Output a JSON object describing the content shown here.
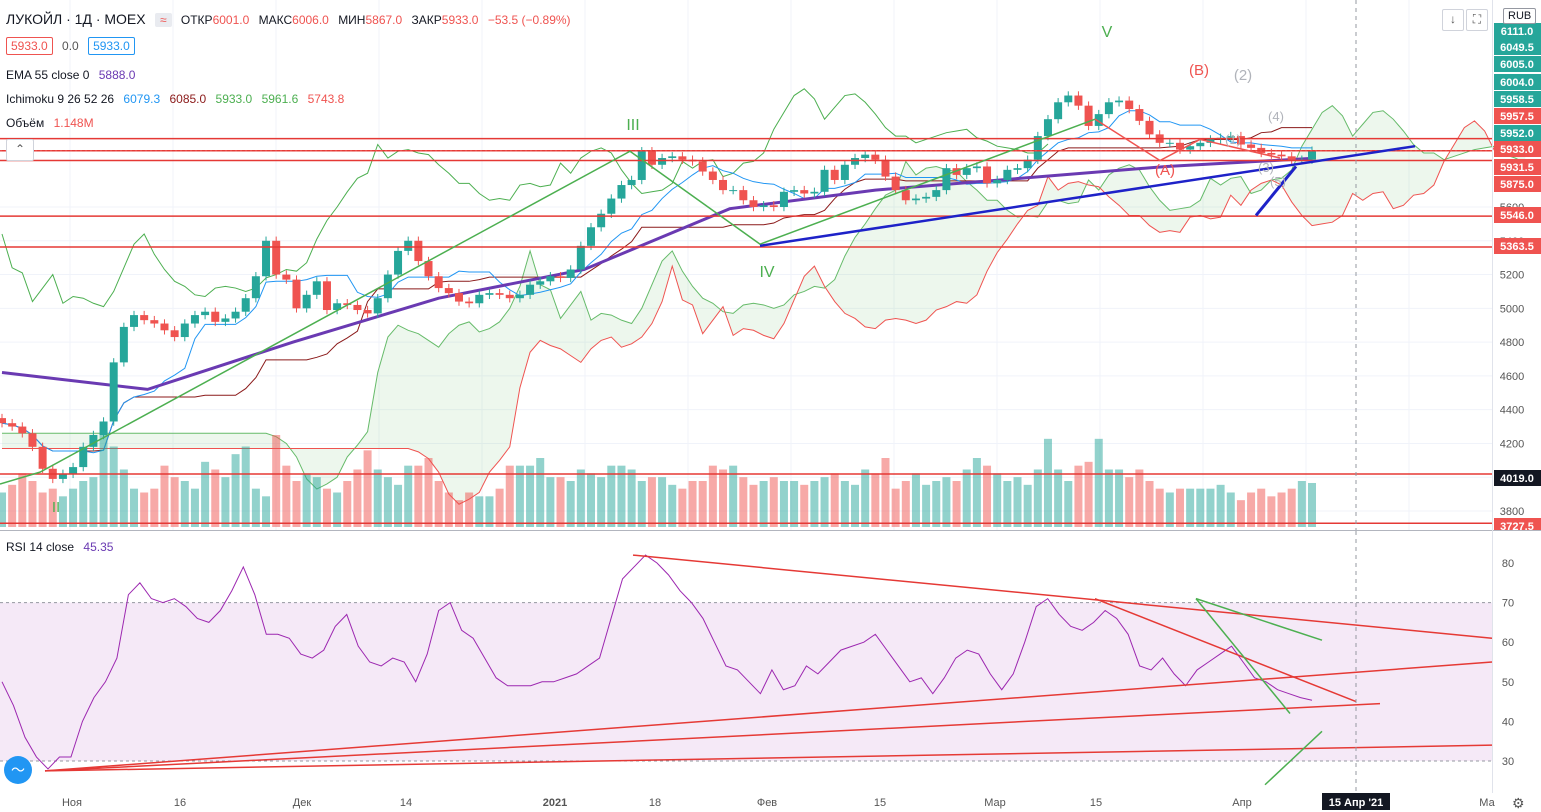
{
  "header": {
    "symbol": "ЛУКОЙЛ · 1Д · MOEX",
    "open_label": "ОТКР",
    "open": "6001.0",
    "high_label": "МАКС",
    "high": "6006.0",
    "low_label": "МИН",
    "low": "5867.0",
    "close_label": "ЗАКР",
    "close": "5933.0",
    "change": "−53.5 (−0.89%)",
    "bid": "5933.0",
    "spread": "0.0",
    "ask": "5933.0"
  },
  "indicators": {
    "ema_label": "EMA 55 close 0",
    "ema_value": "5888.0",
    "ichimoku_label": "Ichimoku 9 26 52 26",
    "ichimoku_values": [
      "6079.3",
      "6085.0",
      "5933.0",
      "5961.6",
      "5743.8"
    ],
    "volume_label": "Объём",
    "volume_value": "1.148M",
    "rsi_label": "RSI 14 close",
    "rsi_value": "45.35"
  },
  "currency": "RUB",
  "colors": {
    "up": "#26a69a",
    "down": "#ef5350",
    "ema": "#6a3ab2",
    "tenkan": "#2196f3",
    "kijun": "#8b1a1a",
    "chikou": "#4caf50",
    "level": "#e53935",
    "trend": "#1e22c8"
  },
  "chart_data": [
    {
      "type": "candlestick",
      "title": "ЛУКОЙЛ · 1Д · MOEX",
      "ylim": [
        3700,
        6250
      ],
      "y_ticks": [
        3800,
        4000,
        4200,
        4400,
        4600,
        4800,
        5000,
        5200,
        5400,
        5600
      ],
      "x_labels": [
        "Ноя",
        "16",
        "Дек",
        "14",
        "2021",
        "18",
        "Фев",
        "15",
        "Мар",
        "15",
        "Апр",
        "15 Апр '21",
        "Ма"
      ],
      "price_labels": [
        {
          "value": "6111.0",
          "color": "#26a69a"
        },
        {
          "value": "6049.5",
          "color": "#26a69a"
        },
        {
          "value": "6005.0",
          "color": "#26a69a"
        },
        {
          "value": "6004.0",
          "color": "#26a69a"
        },
        {
          "value": "5958.5",
          "color": "#26a69a"
        },
        {
          "value": "5957.5",
          "color": "#ef5350"
        },
        {
          "value": "5952.0",
          "color": "#26a69a"
        },
        {
          "value": "5933.0",
          "color": "#ef5350"
        },
        {
          "value": "5931.5",
          "color": "#ef5350"
        },
        {
          "value": "5875.0",
          "color": "#ef5350"
        },
        {
          "value": "5546.0",
          "color": "#ef5350"
        },
        {
          "value": "5363.5",
          "color": "#ef5350"
        },
        {
          "value": "4019.0",
          "color": "#131722"
        },
        {
          "value": "3727.5",
          "color": "#ef5350"
        }
      ],
      "horizontal_levels": [
        6005,
        5933,
        5875,
        5546,
        5363.5,
        4019,
        3727.5
      ],
      "wave_labels": [
        "V",
        "III",
        "IV",
        "II",
        "(A)",
        "(B)",
        "(2)",
        "(4)",
        "(1)",
        "(3)",
        "(5)"
      ],
      "series": [
        {
          "name": "Close",
          "values": [
            4320,
            4300,
            4260,
            4180,
            4050,
            3990,
            4020,
            4060,
            4180,
            4250,
            4330,
            4680,
            4890,
            4960,
            4930,
            4910,
            4870,
            4830,
            4910,
            4960,
            4980,
            4920,
            4940,
            4980,
            5060,
            5190,
            5400,
            5200,
            5170,
            5000,
            5080,
            5160,
            4990,
            5030,
            5020,
            4990,
            4970,
            5060,
            5200,
            5340,
            5400,
            5280,
            5190,
            5120,
            5090,
            5040,
            5030,
            5080,
            5090,
            5080,
            5060,
            5080,
            5140,
            5160,
            5190,
            5180,
            5230,
            5370,
            5480,
            5560,
            5650,
            5730,
            5760,
            5930,
            5850,
            5890,
            5900,
            5880,
            5870,
            5810,
            5760,
            5700,
            5700,
            5640,
            5600,
            5610,
            5600,
            5690,
            5700,
            5680,
            5690,
            5820,
            5760,
            5850,
            5890,
            5910,
            5880,
            5780,
            5700,
            5640,
            5650,
            5660,
            5700,
            5830,
            5790,
            5830,
            5840,
            5740,
            5760,
            5820,
            5830,
            5880,
            6020,
            6120,
            6220,
            6260,
            6200,
            6080,
            6150,
            6220,
            6230,
            6180,
            6110,
            6030,
            5980,
            5980,
            5940,
            5960,
            5980,
            6000,
            6010,
            6020,
            5970,
            5950,
            5920,
            5910,
            5900,
            5880,
            5880,
            5933
          ]
        },
        {
          "name": "EMA 55",
          "values": [
            4620,
            4520,
            4800,
            5060,
            5230,
            5590,
            5700,
            5770,
            5840,
            5888
          ]
        },
        {
          "name": "Volume (M)",
          "values": [
            0.9,
            1.1,
            1.4,
            1.2,
            0.9,
            1.0,
            0.8,
            1.0,
            1.2,
            1.3,
            2.6,
            2.1,
            1.5,
            1.0,
            0.9,
            1.0,
            1.6,
            1.3,
            1.2,
            1.0,
            1.7,
            1.5,
            1.3,
            1.9,
            2.1,
            1.0,
            0.8,
            2.4,
            1.6,
            1.2,
            1.4,
            1.3,
            1.0,
            0.9,
            1.2,
            1.5,
            2.0,
            1.5,
            1.3,
            1.1,
            1.6,
            1.6,
            1.8,
            1.2,
            0.9,
            0.7,
            0.9,
            0.8,
            0.8,
            1.0,
            1.6,
            1.6,
            1.6,
            1.8,
            1.3,
            1.3,
            1.2,
            1.5,
            1.4,
            1.3,
            1.6,
            1.6,
            1.5,
            1.2,
            1.3,
            1.3,
            1.1,
            1.0,
            1.2,
            1.2,
            1.6,
            1.5,
            1.6,
            1.3,
            1.1,
            1.2,
            1.3,
            1.2,
            1.2,
            1.1,
            1.2,
            1.3,
            1.4,
            1.2,
            1.1,
            1.5,
            1.4,
            1.8,
            1.0,
            1.2,
            1.4,
            1.1,
            1.2,
            1.3,
            1.2,
            1.5,
            1.8,
            1.6,
            1.4,
            1.2,
            1.3,
            1.1,
            1.5,
            2.3,
            1.5,
            1.2,
            1.6,
            1.7,
            2.3,
            1.5,
            1.5,
            1.3,
            1.5,
            1.2,
            1.0,
            0.9,
            1.0,
            1.0,
            1.0,
            1.0,
            1.1,
            0.9,
            0.7,
            0.9,
            1.0,
            0.8,
            0.9,
            1.0,
            1.2,
            1.148
          ]
        }
      ]
    },
    {
      "type": "line",
      "title": "RSI 14 close",
      "ylim": [
        25,
        85
      ],
      "y_ticks": [
        30,
        40,
        50,
        60,
        70,
        80
      ],
      "overbought": 70,
      "oversold": 30,
      "series": [
        {
          "name": "RSI",
          "values": [
            50,
            44,
            36,
            31,
            28,
            31,
            31,
            40,
            46,
            50,
            56,
            72,
            75,
            71,
            70,
            71,
            69,
            66,
            65,
            68,
            73,
            79,
            72,
            62,
            62,
            61,
            57,
            56,
            58,
            64,
            67,
            59,
            55,
            54,
            56,
            55,
            50,
            57,
            68,
            70,
            63,
            61,
            56,
            51,
            49,
            49,
            49,
            50,
            50,
            51,
            52,
            54,
            56,
            66,
            76,
            79,
            82,
            80,
            77,
            73,
            70,
            66,
            60,
            54,
            53,
            50,
            47,
            53,
            48,
            49,
            54,
            52,
            55,
            58,
            59,
            60,
            62,
            58,
            54,
            50,
            51,
            47,
            51,
            56,
            58,
            57,
            52,
            48,
            52,
            60,
            69,
            71,
            67,
            64,
            63,
            65,
            68,
            66,
            62,
            54,
            53,
            56,
            52,
            49,
            53,
            55,
            57,
            59,
            55,
            51,
            50,
            48,
            47,
            46,
            45.35
          ]
        }
      ]
    }
  ]
}
